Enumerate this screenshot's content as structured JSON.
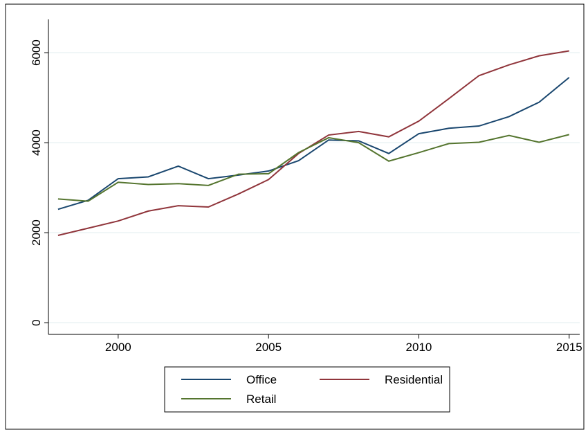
{
  "chart_data": {
    "type": "line",
    "x": [
      1998,
      1999,
      2000,
      2001,
      2002,
      2003,
      2004,
      2005,
      2006,
      2007,
      2008,
      2009,
      2010,
      2011,
      2012,
      2013,
      2014,
      2015
    ],
    "series": [
      {
        "name": "Office",
        "color": "#1a476f",
        "values": [
          2520,
          2720,
          3200,
          3240,
          3480,
          3200,
          3280,
          3370,
          3600,
          4060,
          4040,
          3760,
          4200,
          4320,
          4370,
          4580,
          4900,
          5450
        ]
      },
      {
        "name": "Residential",
        "color": "#90353b",
        "values": [
          1940,
          2100,
          2260,
          2480,
          2600,
          2570,
          2860,
          3180,
          3760,
          4170,
          4250,
          4130,
          4480,
          4980,
          5490,
          5730,
          5930,
          6040
        ]
      },
      {
        "name": "Retail",
        "color": "#55752f",
        "values": [
          2750,
          2700,
          3120,
          3070,
          3090,
          3050,
          3300,
          3310,
          3780,
          4110,
          4000,
          3590,
          3780,
          3980,
          4010,
          4160,
          4010,
          4180
        ]
      }
    ],
    "xlim": [
      1997.68,
      2015.35
    ],
    "ylim": [
      -260,
      6740
    ],
    "xticks": [
      2000,
      2005,
      2010,
      2015
    ],
    "yticks": [
      0,
      2000,
      4000,
      6000
    ],
    "grid": true,
    "legend": "bottom"
  }
}
